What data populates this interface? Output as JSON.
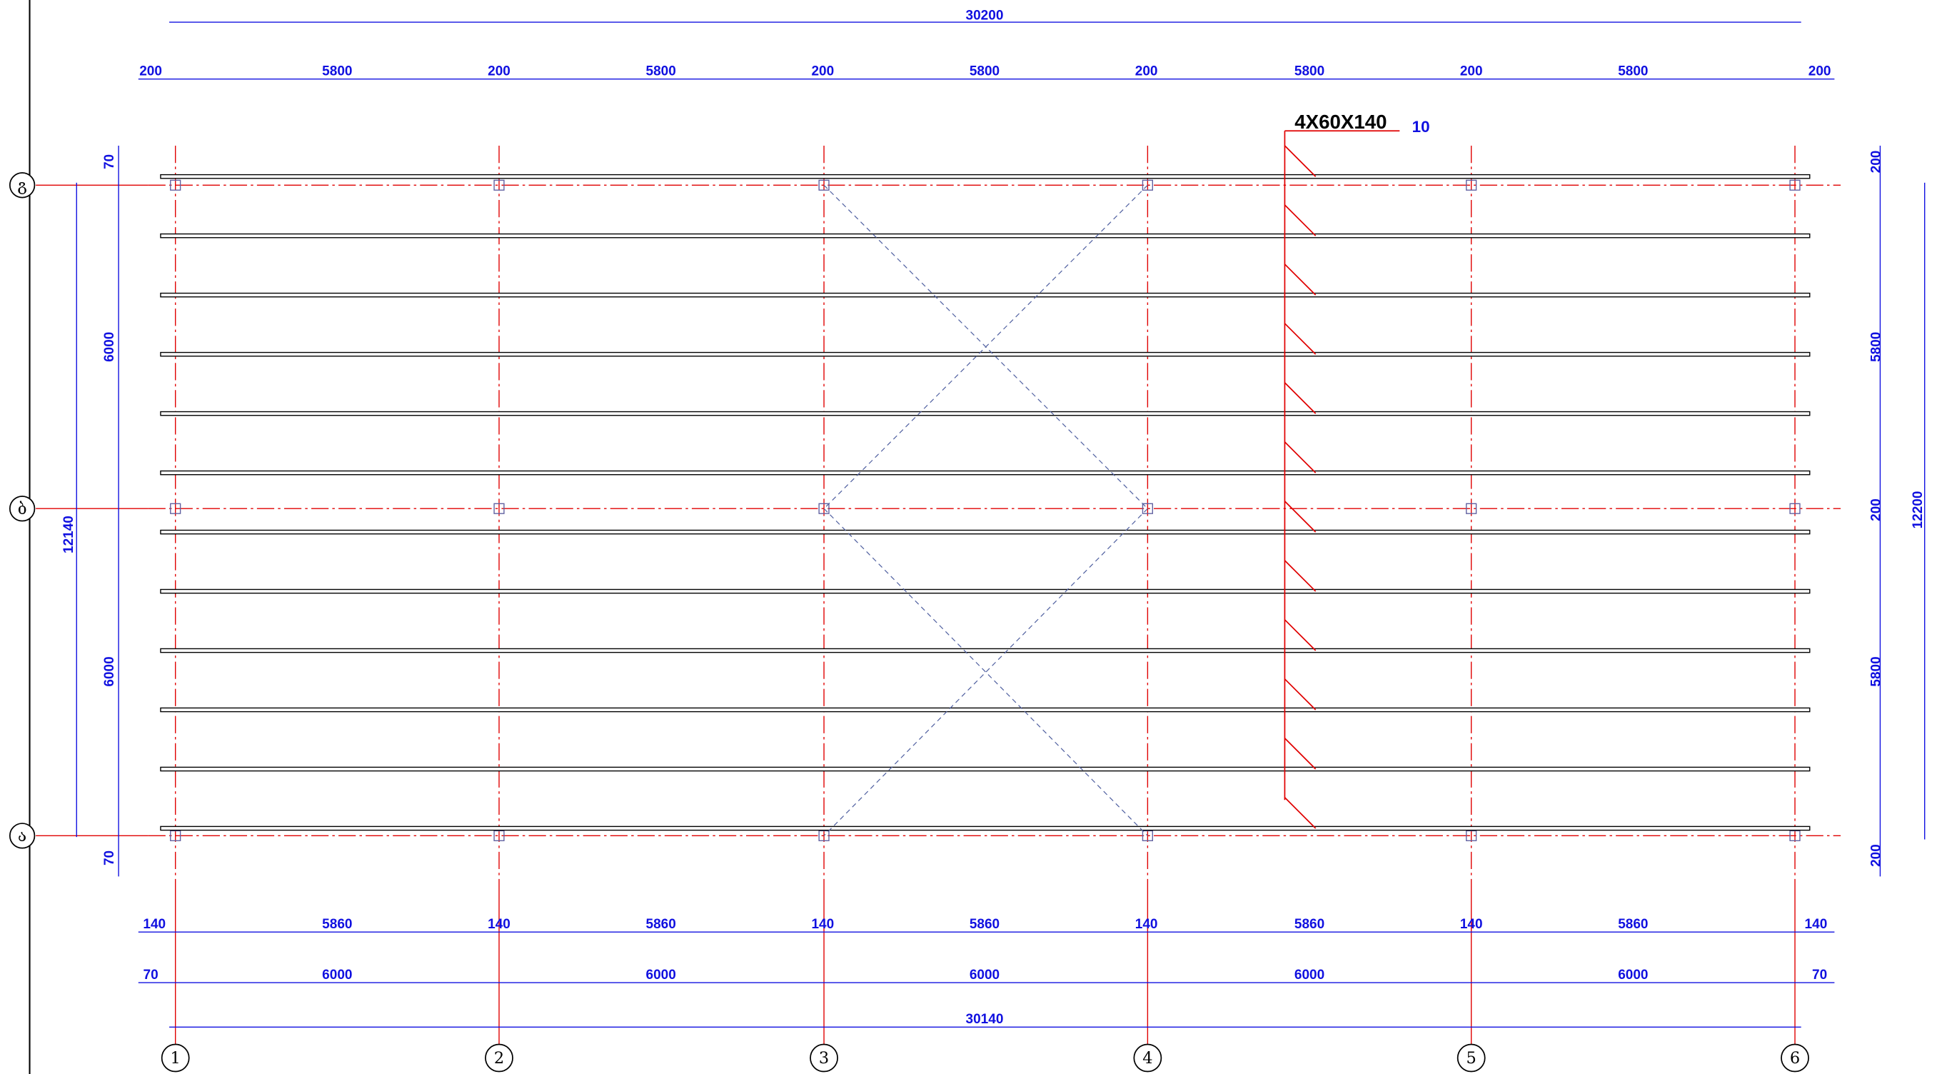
{
  "dimensions": {
    "top_total": "30200",
    "top_row": [
      "200",
      "5800",
      "200",
      "5800",
      "200",
      "5800",
      "200",
      "5800",
      "200",
      "5800",
      "200"
    ],
    "bottom_row1": [
      "140",
      "5860",
      "140",
      "5860",
      "140",
      "5860",
      "140",
      "5860",
      "140",
      "5860",
      "140"
    ],
    "bottom_row2": [
      "70",
      "6000",
      "6000",
      "6000",
      "6000",
      "6000",
      "70"
    ],
    "bottom_total": "30140",
    "left": [
      "70",
      "6000",
      "6000",
      "70"
    ],
    "left_total": "12140",
    "right": [
      "200",
      "5800",
      "200",
      "5800",
      "200"
    ],
    "right_total": "12200"
  },
  "grid_axes": {
    "columns": [
      "1",
      "2",
      "3",
      "4",
      "5",
      "6"
    ],
    "rows": [
      "გ",
      "ბ",
      "ა"
    ]
  },
  "profile": {
    "label": "4X60X140",
    "count": "10"
  }
}
